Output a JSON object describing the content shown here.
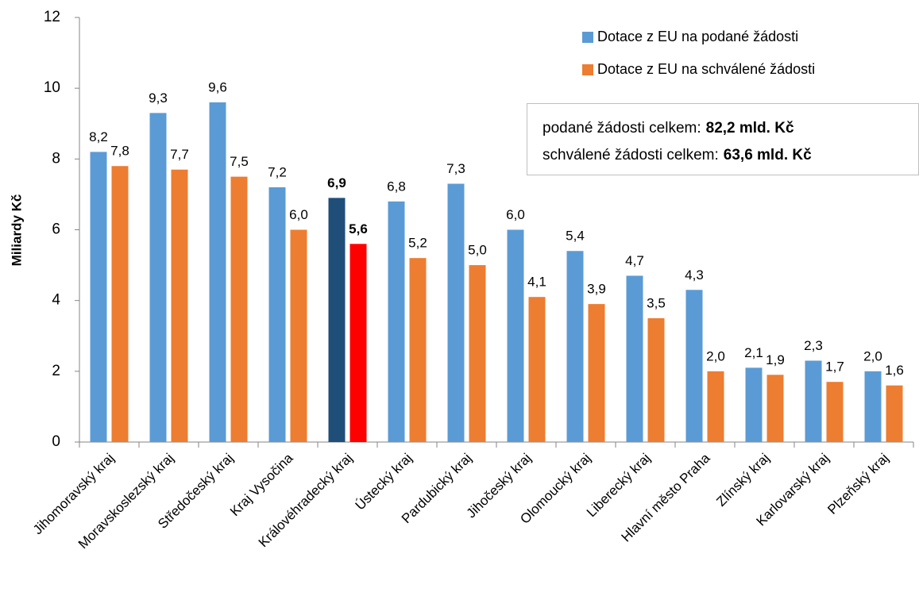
{
  "chart_data": {
    "type": "bar",
    "ylabel": "Miliardy Kč",
    "categories": [
      "Jihomoravský kraj",
      "Moravskoslezský kraj",
      "Středočeský kraj",
      "Kraj Vysočina",
      "Královéhradecký kraj",
      "Ústecký kraj",
      "Pardubický kraj",
      "Jihočeský kraj",
      "Olomoucký kraj",
      "Liberecký kraj",
      "Hlavní město Praha",
      "Zlínský kraj",
      "Karlovarský kraj",
      "Plzeňský kraj"
    ],
    "series": [
      {
        "name": "Dotace z EU na podané žádosti",
        "color": "#5b9bd5",
        "values": [
          8.2,
          9.3,
          9.6,
          7.2,
          6.9,
          6.8,
          7.3,
          6.0,
          5.4,
          4.7,
          4.3,
          2.1,
          2.3,
          2.0
        ],
        "value_labels": [
          "8,2",
          "9,3",
          "9,6",
          "7,2",
          "6,9",
          "6,8",
          "7,3",
          "6,0",
          "5,4",
          "4,7",
          "4,3",
          "2,1",
          "2,3",
          "2,0"
        ]
      },
      {
        "name": "Dotace z EU na schválené žádosti",
        "color": "#ed7d31",
        "values": [
          7.8,
          7.7,
          7.5,
          6.0,
          5.6,
          5.2,
          5.0,
          4.1,
          3.9,
          3.5,
          2.0,
          1.9,
          1.7,
          1.6
        ],
        "value_labels": [
          "7,8",
          "7,7",
          "7,5",
          "6,0",
          "5,6",
          "5,2",
          "5,0",
          "4,1",
          "3,9",
          "3,5",
          "2,0",
          "1,9",
          "1,7",
          "1,6"
        ]
      }
    ],
    "highlight_category": "Královéhradecký kraj",
    "highlight_colors": [
      "#1f4e79",
      "#ff0000"
    ],
    "annotations": [
      {
        "text": "podané žádosti celkem:",
        "value_label": "82,2 mld. Kč"
      },
      {
        "text": "schválené žádosti celkem:",
        "value_label": "63,6 mld. Kč"
      }
    ],
    "ylim": [
      0,
      12
    ],
    "yticks": [
      0,
      2,
      4,
      6,
      8,
      10,
      12
    ],
    "legend": "top-right",
    "grid": false
  }
}
